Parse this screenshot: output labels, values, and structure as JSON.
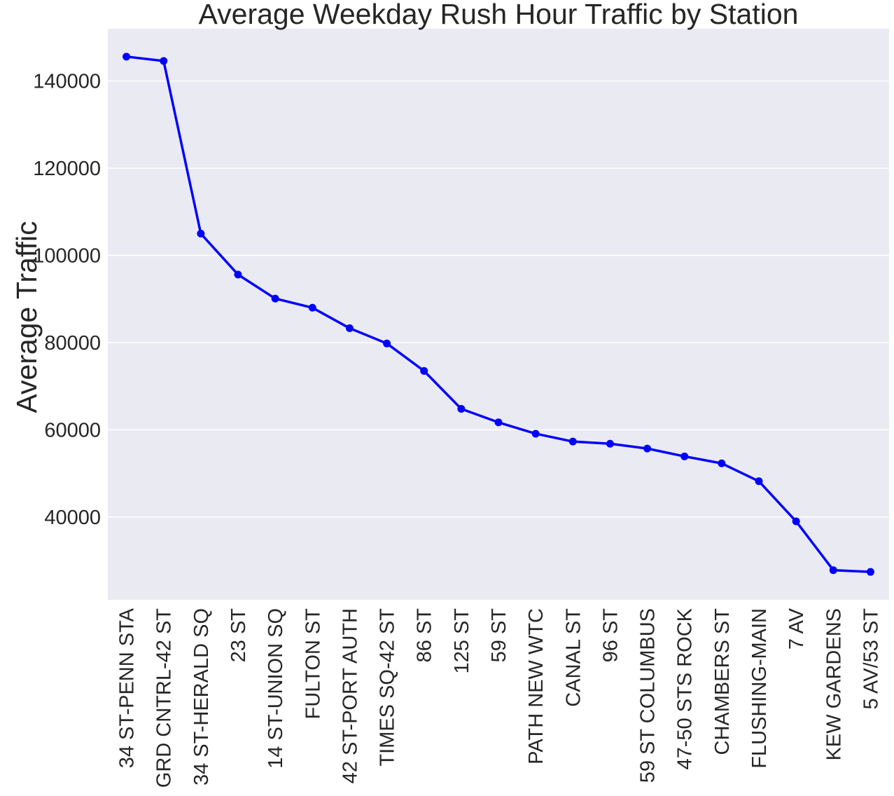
{
  "chart_data": {
    "type": "line",
    "title": "Average Weekday Rush Hour Traffic by Station",
    "xlabel": "",
    "ylabel": "Average Traffic",
    "categories": [
      "34 ST-PENN STA",
      "GRD CNTRL-42 ST",
      "34 ST-HERALD SQ",
      "23 ST",
      "14 ST-UNION SQ",
      "FULTON ST",
      "42 ST-PORT AUTH",
      "TIMES SQ-42 ST",
      "86 ST",
      "125 ST",
      "59 ST",
      "PATH NEW WTC",
      "CANAL ST",
      "96 ST",
      "59 ST COLUMBUS",
      "47-50 STS ROCK",
      "CHAMBERS ST",
      "FLUSHING-MAIN",
      "7 AV",
      "KEW GARDENS",
      "5 AV/53 ST"
    ],
    "series": [
      {
        "values": [
          145600,
          144600,
          105000,
          95600,
          90100,
          88000,
          83300,
          79800,
          73500,
          64800,
          61700,
          59100,
          57300,
          56800,
          55700,
          53900,
          52300,
          48200,
          39000,
          27800,
          27400
        ]
      }
    ],
    "yticks": [
      "40000",
      "60000",
      "80000",
      "100000",
      "120000",
      "140000"
    ],
    "ylim": [
      21000,
      152000
    ],
    "grid": true,
    "colors": {
      "line": "#0000ff",
      "plot_bg": "#eaeaf2",
      "grid": "#ffffff"
    }
  }
}
